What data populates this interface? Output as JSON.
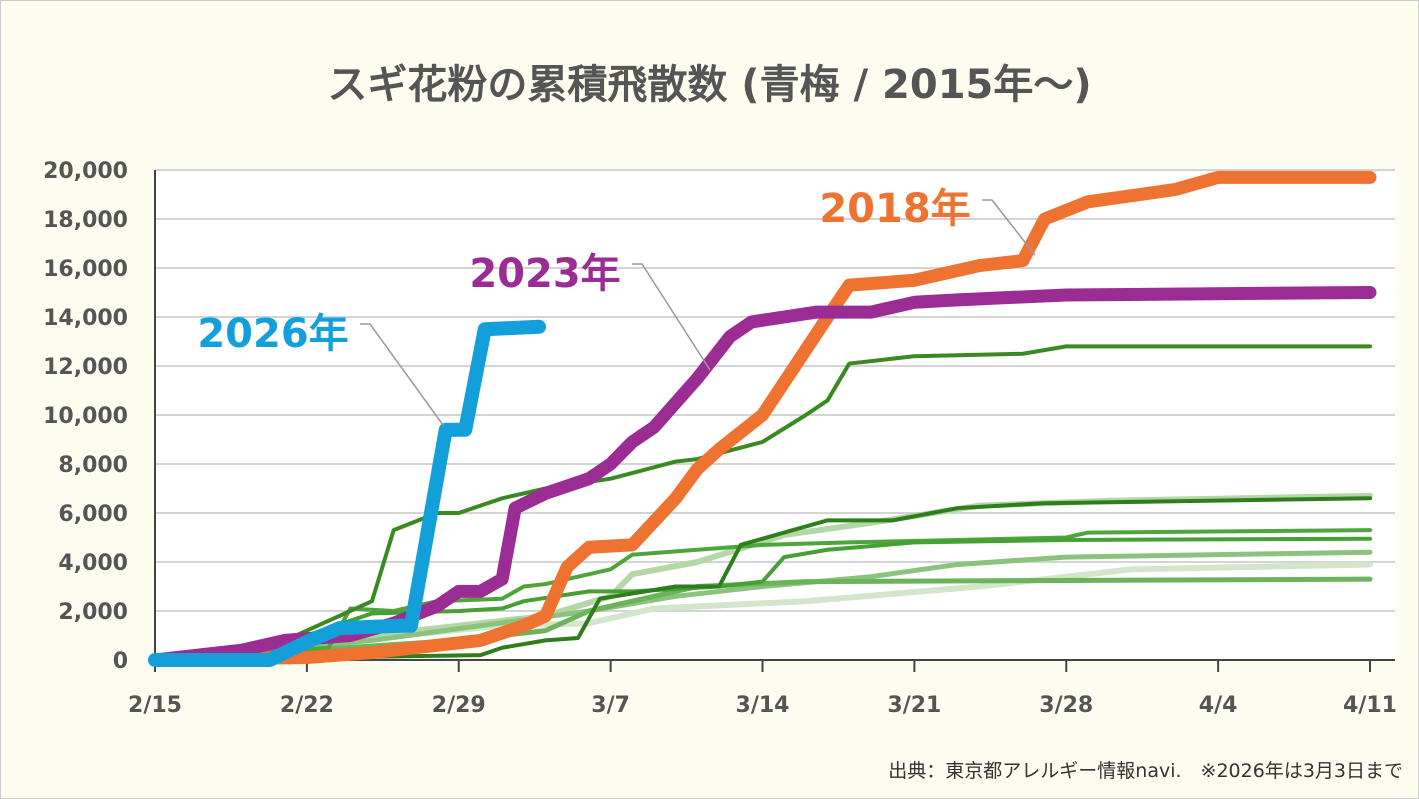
{
  "chart_data": {
    "type": "line",
    "title": "スギ花粉の累積飛散数 (青梅 / 2015年〜)",
    "xlabel": "",
    "ylabel": "",
    "x_unit": "days since 2/15",
    "xlim": [
      0,
      56
    ],
    "ylim": [
      0,
      20000
    ],
    "yticks": [
      "0",
      "2,000",
      "4,000",
      "6,000",
      "8,000",
      "10,000",
      "12,000",
      "14,000",
      "16,000",
      "18,000",
      "20,000"
    ],
    "xticks": [
      {
        "day": 0,
        "label": "2/15"
      },
      {
        "day": 7,
        "label": "2/22"
      },
      {
        "day": 14,
        "label": "2/29"
      },
      {
        "day": 21,
        "label": "3/7"
      },
      {
        "day": 28,
        "label": "3/14"
      },
      {
        "day": 35,
        "label": "3/21"
      },
      {
        "day": 42,
        "label": "3/28"
      },
      {
        "day": 49,
        "label": "4/4"
      },
      {
        "day": 56,
        "label": "4/11"
      }
    ],
    "grid": true,
    "series": [
      {
        "name": "other-year-8",
        "color": "#d3e6cb",
        "width": 6,
        "points": [
          [
            0,
            0
          ],
          [
            16,
            1400
          ],
          [
            20,
            1500
          ],
          [
            23,
            2100
          ],
          [
            30,
            2400
          ],
          [
            38,
            3000
          ],
          [
            45,
            3700
          ],
          [
            56,
            3900
          ]
        ]
      },
      {
        "name": "other-year-5",
        "color": "#b5d7a8",
        "width": 6,
        "points": [
          [
            0,
            0
          ],
          [
            12,
            1200
          ],
          [
            18,
            1800
          ],
          [
            21,
            2600
          ],
          [
            22,
            3500
          ],
          [
            25,
            4000
          ],
          [
            29,
            5100
          ],
          [
            33,
            5600
          ],
          [
            38,
            6300
          ],
          [
            44,
            6500
          ],
          [
            56,
            6700
          ]
        ]
      },
      {
        "name": "other-year-6",
        "color": "#8cc37c",
        "width": 5,
        "points": [
          [
            0,
            0
          ],
          [
            10,
            800
          ],
          [
            20,
            2000
          ],
          [
            24,
            2600
          ],
          [
            28,
            3000
          ],
          [
            33,
            3400
          ],
          [
            37,
            3900
          ],
          [
            42,
            4200
          ],
          [
            56,
            4400
          ]
        ]
      },
      {
        "name": "other-year-7",
        "color": "#6db35c",
        "width": 5,
        "points": [
          [
            0,
            0
          ],
          [
            14,
            800
          ],
          [
            18,
            1200
          ],
          [
            20,
            2000
          ],
          [
            25,
            3000
          ],
          [
            30,
            3200
          ],
          [
            56,
            3300
          ]
        ]
      },
      {
        "name": "other-year-3",
        "color": "#4ea53c",
        "width": 4,
        "points": [
          [
            0,
            0
          ],
          [
            8,
            500
          ],
          [
            9,
            2100
          ],
          [
            11,
            2000
          ],
          [
            13,
            2400
          ],
          [
            16,
            2500
          ],
          [
            17,
            3000
          ],
          [
            18,
            3100
          ],
          [
            21,
            3700
          ],
          [
            22,
            4300
          ],
          [
            25,
            4500
          ],
          [
            28,
            4700
          ],
          [
            32,
            4800
          ],
          [
            42,
            5000
          ],
          [
            43,
            5200
          ],
          [
            56,
            5300
          ]
        ]
      },
      {
        "name": "other-year-4",
        "color": "#46a034",
        "width": 4,
        "points": [
          [
            0,
            0
          ],
          [
            6,
            700
          ],
          [
            10,
            1900
          ],
          [
            14,
            2000
          ],
          [
            16,
            2100
          ],
          [
            17,
            2400
          ],
          [
            20,
            2800
          ],
          [
            22,
            2800
          ],
          [
            26,
            3000
          ],
          [
            28,
            3200
          ],
          [
            29,
            4200
          ],
          [
            31,
            4500
          ],
          [
            35,
            4800
          ],
          [
            42,
            4900
          ],
          [
            56,
            4950
          ]
        ]
      },
      {
        "name": "other-year-2",
        "color": "#2f7e1c",
        "width": 4,
        "points": [
          [
            0,
            0
          ],
          [
            15,
            200
          ],
          [
            16,
            500
          ],
          [
            18,
            800
          ],
          [
            19.5,
            900
          ],
          [
            20.5,
            2500
          ],
          [
            24,
            3000
          ],
          [
            26,
            3000
          ],
          [
            27,
            4700
          ],
          [
            29,
            5200
          ],
          [
            31,
            5700
          ],
          [
            34,
            5700
          ],
          [
            37,
            6200
          ],
          [
            41,
            6400
          ],
          [
            56,
            6600
          ]
        ]
      },
      {
        "name": "other-year-1",
        "color": "#3a8a22",
        "width": 4,
        "points": [
          [
            0,
            0
          ],
          [
            5,
            400
          ],
          [
            7,
            1200
          ],
          [
            10,
            2400
          ],
          [
            11,
            5300
          ],
          [
            13,
            6000
          ],
          [
            14,
            6000
          ],
          [
            16,
            6600
          ],
          [
            18,
            7000
          ],
          [
            21,
            7400
          ],
          [
            24,
            8100
          ],
          [
            25,
            8200
          ],
          [
            28,
            8900
          ],
          [
            30,
            10000
          ],
          [
            31,
            10600
          ],
          [
            32,
            12100
          ],
          [
            35,
            12400
          ],
          [
            40,
            12500
          ],
          [
            42,
            12800
          ],
          [
            56,
            12800
          ]
        ]
      },
      {
        "name": "2018年",
        "color": "#ee7330",
        "width": 13,
        "points": [
          [
            0,
            0
          ],
          [
            7,
            100
          ],
          [
            10,
            300
          ],
          [
            13,
            600
          ],
          [
            15,
            800
          ],
          [
            17,
            1400
          ],
          [
            18,
            1800
          ],
          [
            19,
            3800
          ],
          [
            20,
            4600
          ],
          [
            22,
            4700
          ],
          [
            24,
            6600
          ],
          [
            25,
            7800
          ],
          [
            26,
            8600
          ],
          [
            28,
            10000
          ],
          [
            31,
            14000
          ],
          [
            32,
            15300
          ],
          [
            35,
            15500
          ],
          [
            38,
            16100
          ],
          [
            40,
            16300
          ],
          [
            41,
            18000
          ],
          [
            43,
            18700
          ],
          [
            47,
            19200
          ],
          [
            49,
            19700
          ],
          [
            56,
            19700
          ]
        ]
      },
      {
        "name": "2023年",
        "color": "#9b2c93",
        "width": 13,
        "points": [
          [
            0,
            0
          ],
          [
            4,
            400
          ],
          [
            6,
            800
          ],
          [
            9,
            1000
          ],
          [
            11,
            1500
          ],
          [
            13,
            2200
          ],
          [
            14,
            2800
          ],
          [
            15,
            2800
          ],
          [
            16,
            3300
          ],
          [
            16.6,
            6200
          ],
          [
            18,
            6800
          ],
          [
            20,
            7400
          ],
          [
            21,
            8000
          ],
          [
            22,
            8900
          ],
          [
            23,
            9500
          ],
          [
            25,
            11500
          ],
          [
            26.5,
            13200
          ],
          [
            27.5,
            13800
          ],
          [
            29,
            14000
          ],
          [
            30.5,
            14200
          ],
          [
            33,
            14200
          ],
          [
            35,
            14600
          ],
          [
            37,
            14700
          ],
          [
            42,
            14900
          ],
          [
            56,
            15000
          ]
        ]
      },
      {
        "name": "2026年",
        "color": "#13a0da",
        "width": 14,
        "points": [
          [
            0,
            0
          ],
          [
            5.3,
            0
          ],
          [
            6.9,
            700
          ],
          [
            8.5,
            1300
          ],
          [
            11.3,
            1400
          ],
          [
            11.8,
            1400
          ],
          [
            13.4,
            9400
          ],
          [
            14.3,
            9400
          ],
          [
            15.2,
            13500
          ],
          [
            17.7,
            13600
          ]
        ]
      }
    ],
    "annotations": [
      {
        "text": "2018年",
        "series": "2018年",
        "color": "#ee7330"
      },
      {
        "text": "2023年",
        "series": "2023年",
        "color": "#9b2c93"
      },
      {
        "text": "2026年",
        "series": "2026年",
        "color": "#13a0da"
      }
    ],
    "source": "出典：東京都アレルギー情報navi.　※2026年は3月3日まで"
  }
}
